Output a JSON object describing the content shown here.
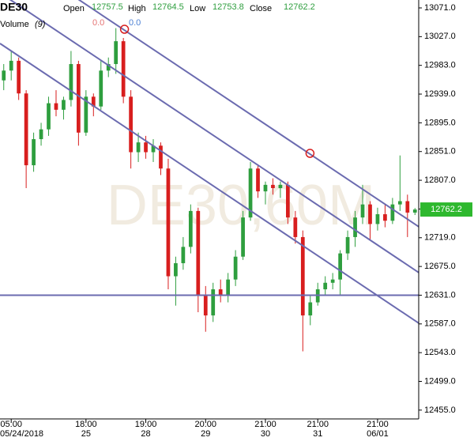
{
  "chart_data": {
    "type": "candlestick",
    "symbol": "DE30",
    "watermark": "DE30,60M",
    "labels": {
      "open": "Open",
      "high": "High",
      "low": "Low",
      "close": "Close"
    },
    "volume": {
      "label": "Volume",
      "param": "(9)",
      "readouts": [
        "0.0",
        "0.0"
      ],
      "colors": [
        "#e57373",
        "#4a7fd4"
      ]
    },
    "up_color": "#2e9e3e",
    "down_color": "#d81e1e",
    "open": [
      12960,
      12975,
      12990,
      12940,
      12830,
      12870,
      12885,
      12925,
      12915,
      12930,
      12985,
      12880,
      12935,
      12920,
      12975,
      12985,
      13020,
      12935,
      12850,
      12865,
      12850,
      12860,
      12825,
      12660,
      12680,
      12705,
      12760,
      12630,
      12600,
      12640,
      12630,
      12655,
      12690,
      12750,
      12825,
      12790,
      12800,
      12795,
      12800,
      12750,
      12720,
      12600,
      12620,
      12640,
      12650,
      12655,
      12695,
      12720,
      12750,
      12770,
      12740,
      12755,
      12745,
      12770,
      12775,
      12757.5
    ],
    "high": [
      12985,
      13005,
      12995,
      12945,
      12880,
      12895,
      12935,
      12945,
      12935,
      13005,
      12990,
      12945,
      12940,
      12990,
      12995,
      13040,
      13025,
      12945,
      12880,
      12875,
      12870,
      12865,
      12840,
      12690,
      12720,
      12770,
      12765,
      12645,
      12650,
      12655,
      12665,
      12700,
      12760,
      12835,
      12830,
      12805,
      12810,
      12805,
      12805,
      12760,
      12730,
      12630,
      12650,
      12660,
      12665,
      12700,
      12730,
      12760,
      12800,
      12775,
      12765,
      12770,
      12780,
      12845,
      12785,
      12764.5
    ],
    "low": [
      12945,
      12960,
      12930,
      12795,
      12820,
      12860,
      12875,
      12905,
      12900,
      12920,
      12860,
      12875,
      12905,
      12915,
      12965,
      12970,
      12925,
      12825,
      12835,
      12840,
      12835,
      12815,
      12640,
      12615,
      12670,
      12695,
      12605,
      12575,
      12590,
      12620,
      12620,
      12645,
      12685,
      12745,
      12780,
      12770,
      12785,
      12780,
      12740,
      12710,
      12545,
      12585,
      12615,
      12630,
      12640,
      12630,
      12685,
      12705,
      12740,
      12715,
      12730,
      12735,
      12740,
      12760,
      12720,
      12753.8
    ],
    "close": [
      12975,
      12990,
      12940,
      12830,
      12870,
      12885,
      12925,
      12915,
      12930,
      12985,
      12880,
      12935,
      12920,
      12975,
      12985,
      13020,
      12935,
      12850,
      12865,
      12850,
      12860,
      12825,
      12660,
      12680,
      12705,
      12760,
      12630,
      12600,
      12640,
      12630,
      12655,
      12690,
      12750,
      12825,
      12790,
      12800,
      12795,
      12800,
      12750,
      12720,
      12600,
      12620,
      12640,
      12650,
      12655,
      12695,
      12720,
      12750,
      12770,
      12740,
      12755,
      12745,
      12770,
      12775,
      12757.5,
      12762.2
    ],
    "xlim": [
      -0.5,
      55.5
    ],
    "xticks": [
      {
        "value": 1,
        "label": "05:00",
        "date": "05/24/2018"
      },
      {
        "value": 11,
        "label": "18:00",
        "date": "25"
      },
      {
        "value": 19,
        "label": "19:00",
        "date": "28"
      },
      {
        "value": 27,
        "label": "20:00",
        "date": "29"
      },
      {
        "value": 35,
        "label": "21:00",
        "date": "30"
      },
      {
        "value": 42,
        "label": "21:00",
        "date": "31"
      },
      {
        "value": 50,
        "label": "21:00",
        "date": "06/01"
      }
    ],
    "ylim": [
      12441.5,
      13083.1
    ],
    "yticks": [
      {
        "value": 13071,
        "label": "13071.0"
      },
      {
        "value": 13027,
        "label": "13027.0"
      },
      {
        "value": 12983,
        "label": "12983.0"
      },
      {
        "value": 12939,
        "label": "12939.0"
      },
      {
        "value": 12895,
        "label": "12895.0"
      },
      {
        "value": 12851,
        "label": "12851.0"
      },
      {
        "value": 12807,
        "label": "12807.0"
      },
      {
        "value": 12763,
        "label": "12763.0"
      },
      {
        "value": 12719,
        "label": "12719.0"
      },
      {
        "value": 12675,
        "label": "12675.0"
      },
      {
        "value": 12631,
        "label": "12631.0"
      },
      {
        "value": 12587,
        "label": "12587.0"
      },
      {
        "value": 12543,
        "label": "12543.0"
      },
      {
        "value": 12499,
        "label": "12499.0"
      },
      {
        "value": 12455,
        "label": "12455.0"
      }
    ],
    "line_color": "#6b6bb0",
    "trend_lines": [
      {
        "x": [
          -0.5,
          55.7
        ],
        "y": [
          13164.2,
          12734.4
        ]
      },
      {
        "x": [
          -0.5,
          55.7
        ],
        "y": [
          13094.0,
          12664.2
        ]
      },
      {
        "x": [
          -0.5,
          55.7
        ],
        "y": [
          13016.5,
          12586.7
        ]
      }
    ],
    "level": 12631,
    "anchors": [
      {
        "x": 16.15,
        "y": 13038.3
      },
      {
        "x": 40.96,
        "y": 12848.2
      }
    ],
    "last_price_color": "#2eb82e"
  }
}
